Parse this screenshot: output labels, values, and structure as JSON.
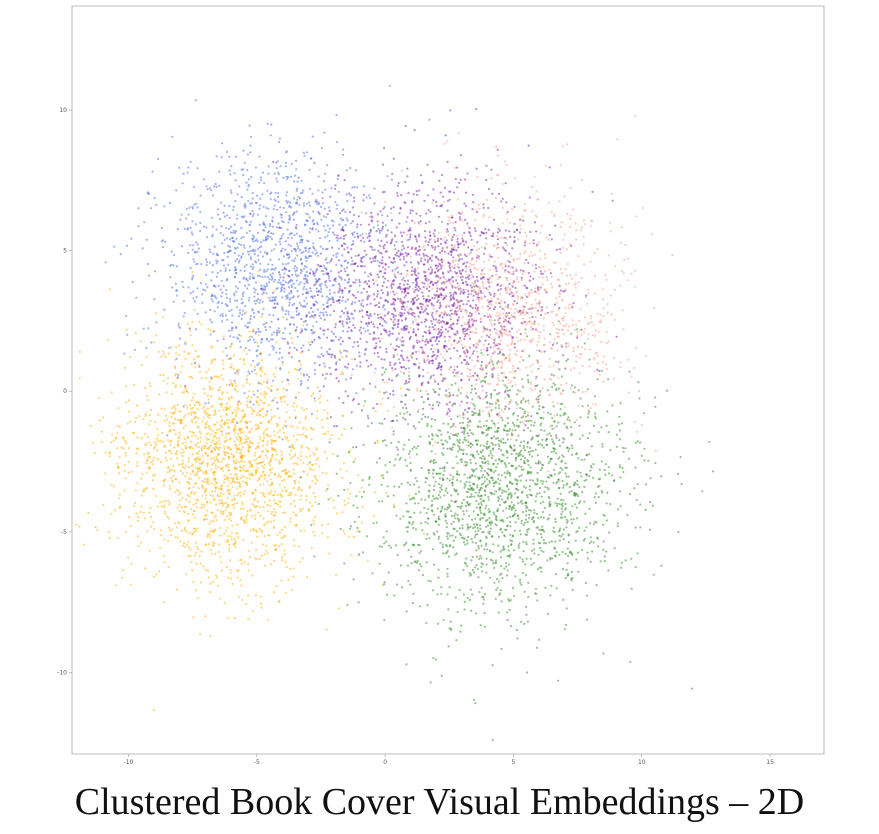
{
  "caption": "Clustered Book Cover Visual Embeddings – 2D",
  "chart_data": {
    "type": "scatter",
    "title": "",
    "xlabel": "",
    "ylabel": "",
    "xlim": [
      -12.2,
      17.1
    ],
    "ylim": [
      -12.9,
      13.7
    ],
    "grid": false,
    "legend": "none",
    "x_ticks": [
      -10,
      -5,
      0,
      5,
      10,
      15
    ],
    "y_ticks": [
      10,
      5,
      0,
      -5,
      -10
    ],
    "x_tick_labels": [
      "-10",
      "-5",
      "0",
      "5",
      "10",
      "15"
    ],
    "y_tick_labels": [
      "10",
      "5",
      "0",
      "-5",
      "-10"
    ],
    "clusters": [
      {
        "color": "#FFB000",
        "center": [
          -6.2,
          -2.5
        ],
        "spread": [
          2.2,
          2.1
        ],
        "count": 1900
      },
      {
        "color": "#2E8B22",
        "center": [
          4.4,
          -3.4
        ],
        "spread": [
          2.5,
          2.2
        ],
        "count": 1900
      },
      {
        "color": "#4B6BE0",
        "center": [
          -4.2,
          4.4
        ],
        "spread": [
          2.2,
          2.0
        ],
        "count": 1400
      },
      {
        "color": "#7A1FA8",
        "center": [
          1.6,
          3.3
        ],
        "spread": [
          2.3,
          2.0
        ],
        "count": 1700
      },
      {
        "color": "#F4A08A",
        "center": [
          4.8,
          2.8
        ],
        "spread": [
          2.2,
          2.1
        ],
        "count": 1100
      }
    ]
  }
}
